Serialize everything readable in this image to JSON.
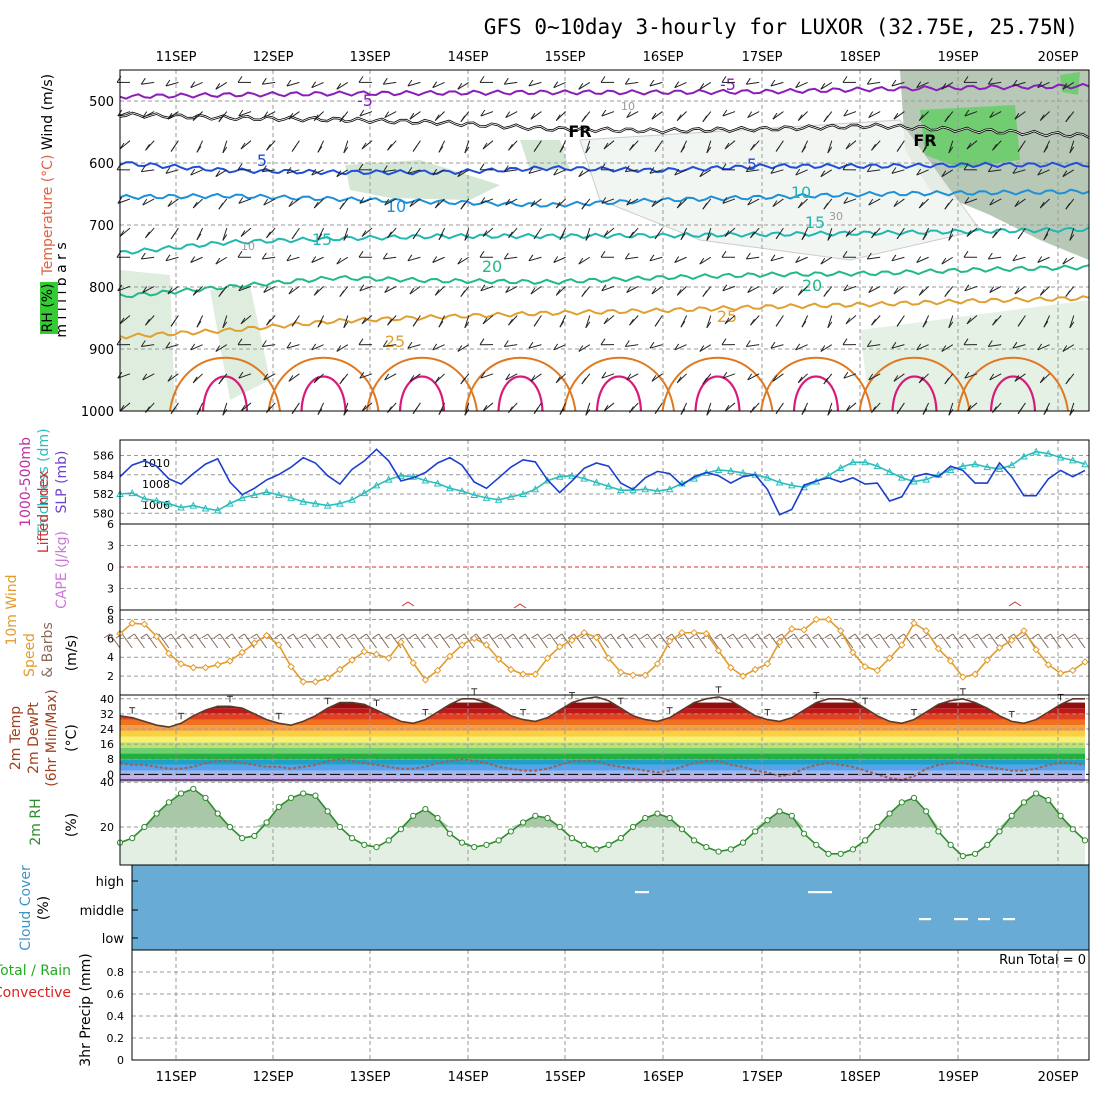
{
  "title": "GFS 0~10day 3-hourly for LUXOR (32.75E, 25.75N)",
  "colors": {
    "frame": "#000000",
    "grid": "#9a9a9a",
    "rh_green": "#b7d7b7",
    "rh_dark": "#7c9a7c",
    "rh_bright": "#66cc66",
    "slp": "#1a3fd1",
    "thickness": "#2cbdbd",
    "lifted_index": "#d03030",
    "wind_speed": "#e39b2c",
    "rh2m": "#2e8b2e",
    "cloud": "#68acd6",
    "precip_total": "#22aa22",
    "precip_conv": "#dd2222"
  },
  "chart_data": [
    {
      "id": "cross_section",
      "type": "contour",
      "x_ticks": [
        "11SEP",
        "12SEP",
        "13SEP",
        "14SEP",
        "15SEP",
        "16SEP",
        "17SEP",
        "18SEP",
        "19SEP",
        "20SEP"
      ],
      "ylabel": "millibars",
      "y_ticks": [
        500,
        600,
        700,
        800,
        900,
        1000
      ],
      "ylim": [
        450,
        1000
      ],
      "side_labels": [
        "Wind (m/s)",
        "Temperature (°C)",
        "RH (%)"
      ],
      "isotherms": [
        {
          "label": "-5",
          "color": "#8a1eb8",
          "values": [
            -5,
            -5,
            493,
            490,
            488,
            487,
            486,
            486,
            485,
            481,
            478,
            476
          ]
        },
        {
          "label": "FR",
          "color": "#000000",
          "values": [
            0,
            0,
            522,
            527,
            530,
            535,
            545,
            548,
            545,
            540,
            548,
            556
          ]
        },
        {
          "label": "5",
          "color": "#1f4fd8",
          "values": [
            5,
            5,
            600,
            612,
            615,
            615,
            608,
            612,
            605,
            605,
            603,
            603
          ]
        },
        {
          "label": "10",
          "color": "#1e90d8",
          "values": [
            10,
            10,
            655,
            653,
            658,
            663,
            668,
            660,
            655,
            650,
            648,
            646
          ]
        },
        {
          "label": "15",
          "color": "#20b8b0",
          "values": [
            15,
            15,
            745,
            728,
            722,
            718,
            718,
            717,
            715,
            713,
            710,
            707
          ]
        },
        {
          "label": "20",
          "color": "#22b888",
          "values": [
            20,
            20,
            815,
            800,
            785,
            790,
            792,
            785,
            780,
            778,
            772,
            768
          ]
        },
        {
          "label": "25",
          "color": "#e0a030",
          "values": [
            25,
            25,
            880,
            870,
            855,
            848,
            842,
            838,
            832,
            828,
            822,
            818
          ]
        }
      ],
      "contour_labels": [
        "-5",
        "-5",
        "FR",
        "FR",
        "5",
        "5",
        "10",
        "10",
        "15",
        "15",
        "20",
        "20",
        "25",
        "25",
        "10",
        "10",
        "30"
      ]
    },
    {
      "id": "slp_thickness",
      "type": "line",
      "left_label": "1000-500mb Thickness (dm)",
      "right_label": "SLP (mb)",
      "y_ticks_left": [
        580,
        582,
        584,
        586
      ],
      "y_ticks_right": [
        1006,
        1008,
        1010
      ],
      "series": [
        {
          "name": "SLP (mb)",
          "values": [
            1008.7,
            1009.8,
            1010.2,
            1009.7,
            1008.5,
            1008.0,
            1009.0,
            1009.9,
            1010.4,
            1008.2,
            1007.0,
            1007.6,
            1008.4,
            1008.9,
            1009.6,
            1010.5,
            1010.0,
            1008.8,
            1008.0,
            1009.4,
            1010.2,
            1011.3,
            1010.2,
            1008.3,
            1008.6,
            1009.1,
            1010.0,
            1010.5,
            1009.8,
            1008.2,
            1007.6,
            1008.6,
            1009.6,
            1010.3,
            1010.1,
            1008.4,
            1007.2,
            1008.3,
            1009.5,
            1010.0,
            1009.7,
            1008.1,
            1007.5,
            1008.6,
            1009.2,
            1009.0,
            1007.9,
            1008.7,
            1009.1,
            1008.8,
            1008.1,
            1008.7,
            1008.9,
            1007.5,
            1005.1,
            1005.6,
            1007.9,
            1008.3,
            1008.6,
            1008.2,
            1008.6,
            1008.0,
            1008.1,
            1006.4,
            1006.8,
            1008.7,
            1009.0,
            1008.7,
            1009.7,
            1009.3,
            1008.1,
            1008.1,
            1010.0,
            1008.7,
            1006.9,
            1006.9,
            1008.5,
            1009.3,
            1008.7,
            1009.3
          ]
        },
        {
          "name": "Thickness (dm)",
          "values": [
            582.0,
            582.1,
            581.5,
            581.3,
            581.0,
            580.6,
            580.8,
            580.5,
            580.3,
            581.0,
            581.6,
            581.9,
            582.2,
            581.9,
            581.6,
            581.2,
            581.0,
            580.8,
            581.0,
            581.4,
            582.1,
            582.9,
            583.5,
            583.9,
            583.8,
            583.4,
            583.1,
            582.6,
            582.3,
            581.9,
            581.6,
            581.4,
            581.7,
            582.0,
            582.5,
            583.4,
            583.8,
            583.9,
            583.6,
            583.2,
            582.8,
            582.4,
            582.4,
            582.5,
            582.3,
            582.5,
            583.1,
            583.6,
            584.2,
            584.5,
            584.4,
            584.2,
            584.0,
            583.7,
            583.2,
            582.9,
            582.7,
            583.3,
            583.9,
            584.7,
            585.3,
            585.3,
            584.9,
            584.3,
            583.7,
            583.3,
            583.5,
            584.0,
            584.5,
            584.9,
            585.1,
            584.8,
            584.6,
            585.0,
            585.9,
            586.4,
            586.2,
            585.8,
            585.5,
            585.1
          ]
        }
      ]
    },
    {
      "id": "cape_li",
      "type": "line",
      "left_label": "Lifted Index",
      "right_label": "CAPE (J/kg)",
      "y_ticks_left": [
        -6,
        -3,
        0,
        3,
        6
      ],
      "series": [
        {
          "name": "Lifted Index",
          "values": []
        },
        {
          "name": "CAPE (J/kg)",
          "values": []
        }
      ]
    },
    {
      "id": "wind10m",
      "type": "line",
      "left_label": "10m Wind Speed & Barbs",
      "unit_label": "(m/s)",
      "y_ticks": [
        2,
        4,
        6,
        8
      ],
      "ylim": [
        0,
        9
      ],
      "series": [
        {
          "name": "Wind speed (m/s)",
          "values": [
            6.5,
            7.6,
            7.5,
            6.2,
            4.4,
            3.3,
            2.9,
            2.9,
            3.2,
            3.6,
            4.5,
            5.5,
            6.3,
            5.3,
            3.0,
            1.4,
            1.4,
            1.8,
            2.7,
            3.7,
            4.6,
            4.3,
            3.9,
            5.6,
            3.4,
            1.6,
            2.6,
            4.1,
            5.3,
            6.0,
            5.3,
            3.8,
            2.7,
            2.2,
            2.2,
            3.9,
            5.1,
            5.8,
            6.6,
            6.1,
            3.9,
            2.4,
            2.1,
            2.1,
            3.3,
            5.7,
            6.6,
            6.6,
            6.5,
            4.7,
            2.9,
            2.0,
            2.7,
            3.3,
            5.6,
            7.0,
            6.9,
            8.0,
            8.0,
            6.8,
            4.5,
            3.0,
            2.6,
            3.9,
            5.3,
            7.6,
            6.8,
            4.9,
            3.6,
            1.9,
            2.2,
            3.7,
            5.0,
            5.8,
            6.8,
            4.8,
            3.2,
            2.3,
            2.6,
            3.5
          ]
        }
      ]
    },
    {
      "id": "temp2m",
      "type": "line",
      "left_label": "2m Temp 2m DewPt (6hr Min/Max)",
      "unit_label": "(°C)",
      "y_ticks": [
        0,
        8,
        16,
        24,
        32,
        40
      ],
      "ylim": [
        -3,
        42
      ],
      "band_colors": [
        "#c8a8f0",
        "#a0b8f0",
        "#58a0f0",
        "#20a0c8",
        "#20b040",
        "#70d070",
        "#c0e070",
        "#f8f070",
        "#f8d040",
        "#f8a040",
        "#f07020",
        "#e04020",
        "#c01818",
        "#901010"
      ],
      "series": [
        {
          "name": "2m Temp",
          "values": [
            31,
            30,
            28,
            26,
            25,
            27,
            31,
            34,
            36,
            36,
            35,
            32,
            29,
            27,
            26,
            28,
            31,
            35,
            38,
            38,
            37,
            34,
            31,
            28,
            27,
            29,
            33,
            37,
            40,
            40,
            38,
            35,
            31,
            29,
            28,
            30,
            34,
            38,
            40,
            41,
            39,
            35,
            31,
            29,
            28,
            30,
            34,
            38,
            40,
            41,
            39,
            35,
            31,
            29,
            28,
            30,
            34,
            38,
            40,
            40,
            39,
            35,
            31,
            28,
            27,
            29,
            33,
            37,
            39,
            40,
            38,
            35,
            31,
            28,
            27,
            29,
            33,
            37,
            40,
            40
          ]
        },
        {
          "name": "2m DewPt",
          "values": [
            6,
            5,
            5,
            4,
            3,
            3,
            4,
            6,
            7,
            7,
            6,
            5,
            4,
            4,
            3,
            4,
            5,
            7,
            8,
            7,
            6,
            5,
            4,
            3,
            3,
            4,
            6,
            7,
            8,
            7,
            6,
            4,
            3,
            2,
            2,
            3,
            5,
            7,
            7,
            7,
            5,
            4,
            3,
            2,
            1,
            2,
            4,
            6,
            7,
            7,
            5,
            4,
            2,
            1,
            -1,
            0,
            3,
            5,
            6,
            5,
            4,
            2,
            0,
            -2,
            -3,
            -1,
            3,
            5,
            6,
            6,
            5,
            4,
            3,
            2,
            2,
            3,
            5,
            6,
            6,
            5
          ]
        }
      ]
    },
    {
      "id": "rh2m",
      "type": "area",
      "left_label": "2m RH",
      "unit_label": "(%)",
      "y_ticks": [
        20,
        40
      ],
      "ylim": [
        3,
        41
      ],
      "series": [
        {
          "name": "2m RH",
          "values": [
            13,
            15,
            20,
            26,
            31,
            35,
            37,
            33,
            26,
            20,
            15,
            16,
            22,
            29,
            33,
            35,
            34,
            27,
            20,
            15,
            12,
            11,
            14,
            19,
            25,
            28,
            24,
            17,
            13,
            11,
            12,
            14,
            18,
            22,
            25,
            24,
            20,
            15,
            12,
            10,
            12,
            15,
            20,
            24,
            26,
            24,
            19,
            14,
            11,
            9,
            10,
            13,
            18,
            23,
            27,
            25,
            17,
            12,
            8,
            8,
            10,
            14,
            20,
            26,
            31,
            33,
            27,
            18,
            12,
            7,
            8,
            12,
            18,
            25,
            31,
            35,
            32,
            25,
            19,
            14
          ]
        }
      ]
    },
    {
      "id": "cloud",
      "type": "bar",
      "left_label": "Cloud Cover",
      "unit_label": "(%)",
      "y_ticks": [
        "high",
        "middle",
        "low"
      ]
    },
    {
      "id": "precip",
      "type": "bar",
      "left_label": "3hr Precip (mm)",
      "side_labels": [
        "Total / Rain",
        "Convective"
      ],
      "y_ticks": [
        0,
        0.2,
        0.4,
        0.6,
        0.8
      ],
      "ylim": [
        0,
        1.0
      ],
      "run_total": "Run Total = 0",
      "values": []
    }
  ]
}
